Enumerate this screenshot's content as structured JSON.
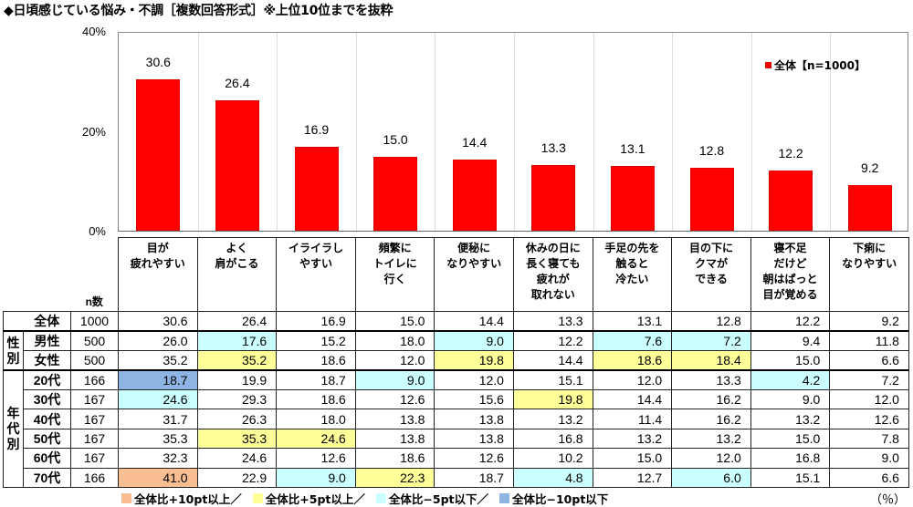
{
  "title": "◆日頃感じている悩み・不調［複数回答形式］※上位10位までを抜粋",
  "chart_data": {
    "type": "bar",
    "title": "日頃感じている悩み・不調［複数回答形式］※上位10位までを抜粋",
    "categories": [
      "目が疲れやすい",
      "よく肩がこる",
      "イライラしやすい",
      "頻繁にトイレに行く",
      "便秘になりやすい",
      "休みの日に長く寝ても疲れが取れない",
      "手足の先を触ると冷たい",
      "目の下にクマができる",
      "寝不足だけど朝はぱっと目が覚める",
      "下痢になりやすい"
    ],
    "series": [
      {
        "name": "全体【n=1000】",
        "color": "#ff0000",
        "values": [
          30.6,
          26.4,
          16.9,
          15.0,
          14.4,
          13.3,
          13.1,
          12.8,
          12.2,
          9.2
        ]
      }
    ],
    "xlabel": "",
    "ylabel": "",
    "ylim": [
      0,
      40
    ],
    "yticks": [
      "0%",
      "20%",
      "40%"
    ],
    "legend_position": "top-right",
    "grid": "vertical"
  },
  "ytick_labels": {
    "top": "40%",
    "mid": "20%",
    "bottom": "0%"
  },
  "bar_labels": [
    "30.6",
    "26.4",
    "16.9",
    "15.0",
    "14.4",
    "13.3",
    "13.1",
    "12.8",
    "12.2",
    "9.2"
  ],
  "legend": {
    "label": "全体【n=1000】"
  },
  "table": {
    "n_header": "n数",
    "headers": [
      [
        "目が",
        "疲れやすい"
      ],
      [
        "よく",
        "肩がこる"
      ],
      [
        "イライラし",
        "やすい"
      ],
      [
        "頻繁に",
        "トイレに",
        "行く"
      ],
      [
        "便秘に",
        "なりやすい"
      ],
      [
        "休みの日に",
        "長く寝ても",
        "疲れが",
        "取れない"
      ],
      [
        "手足の先を",
        "触ると",
        "冷たい"
      ],
      [
        "目の下に",
        "クマが",
        "できる"
      ],
      [
        "寝不足",
        "だけど",
        "朝はぱっと",
        "目が覚める"
      ],
      [
        "下痢に",
        "なりやすい"
      ]
    ],
    "groups": {
      "gender": "性別",
      "age": "年代別"
    },
    "rows": [
      {
        "label": "全体",
        "n": "1000",
        "values": [
          "30.6",
          "26.4",
          "16.9",
          "15.0",
          "14.4",
          "13.3",
          "13.1",
          "12.8",
          "12.2",
          "9.2"
        ],
        "colors": [
          "",
          "",
          "",
          "",
          "",
          "",
          "",
          "",
          "",
          ""
        ]
      },
      {
        "label": "男性",
        "n": "500",
        "values": [
          "26.0",
          "17.6",
          "15.2",
          "18.0",
          "9.0",
          "12.2",
          "7.6",
          "7.2",
          "9.4",
          "11.8"
        ],
        "colors": [
          "",
          "c",
          "",
          "",
          "c",
          "",
          "c",
          "c",
          "",
          ""
        ]
      },
      {
        "label": "女性",
        "n": "500",
        "values": [
          "35.2",
          "35.2",
          "18.6",
          "12.0",
          "19.8",
          "14.4",
          "18.6",
          "18.4",
          "15.0",
          "6.6"
        ],
        "colors": [
          "",
          "y",
          "",
          "",
          "y",
          "",
          "y",
          "y",
          "",
          ""
        ]
      },
      {
        "label": "20代",
        "n": "166",
        "values": [
          "18.7",
          "19.9",
          "18.7",
          "9.0",
          "12.0",
          "15.1",
          "12.0",
          "13.3",
          "4.2",
          "7.2"
        ],
        "colors": [
          "b",
          "",
          "",
          "c",
          "",
          "",
          "",
          "",
          "c",
          ""
        ]
      },
      {
        "label": "30代",
        "n": "167",
        "values": [
          "24.6",
          "29.3",
          "18.6",
          "12.6",
          "15.6",
          "19.8",
          "14.4",
          "16.2",
          "9.0",
          "12.0"
        ],
        "colors": [
          "c",
          "",
          "",
          "",
          "",
          "y",
          "",
          "",
          "",
          ""
        ]
      },
      {
        "label": "40代",
        "n": "167",
        "values": [
          "31.7",
          "26.3",
          "18.0",
          "13.8",
          "13.8",
          "13.2",
          "11.4",
          "16.2",
          "13.2",
          "12.6"
        ],
        "colors": [
          "",
          "",
          "",
          "",
          "",
          "",
          "",
          "",
          "",
          ""
        ]
      },
      {
        "label": "50代",
        "n": "167",
        "values": [
          "35.3",
          "35.3",
          "24.6",
          "13.8",
          "13.8",
          "16.8",
          "13.2",
          "13.2",
          "15.0",
          "7.8"
        ],
        "colors": [
          "",
          "y",
          "y",
          "",
          "",
          "",
          "",
          "",
          "",
          ""
        ]
      },
      {
        "label": "60代",
        "n": "167",
        "values": [
          "32.3",
          "24.6",
          "12.6",
          "18.6",
          "12.6",
          "10.2",
          "15.0",
          "12.0",
          "16.8",
          "9.0"
        ],
        "colors": [
          "",
          "",
          "",
          "",
          "",
          "",
          "",
          "",
          "",
          ""
        ]
      },
      {
        "label": "70代",
        "n": "166",
        "values": [
          "41.0",
          "22.9",
          "9.0",
          "22.3",
          "18.7",
          "4.8",
          "12.7",
          "6.0",
          "15.1",
          "6.6"
        ],
        "colors": [
          "o",
          "",
          "c",
          "y",
          "",
          "c",
          "",
          "c",
          "",
          ""
        ]
      }
    ]
  },
  "highlight_colors": {
    "o": "#f9bf93",
    "y": "#ffff99",
    "c": "#ccffff",
    "b": "#8db4e2"
  },
  "footer": {
    "items": [
      "全体比+10pt以上／",
      "全体比+5pt以上／",
      "全体比−5pt以下／",
      "全体比−10pt以下"
    ],
    "unit": "（％）"
  }
}
